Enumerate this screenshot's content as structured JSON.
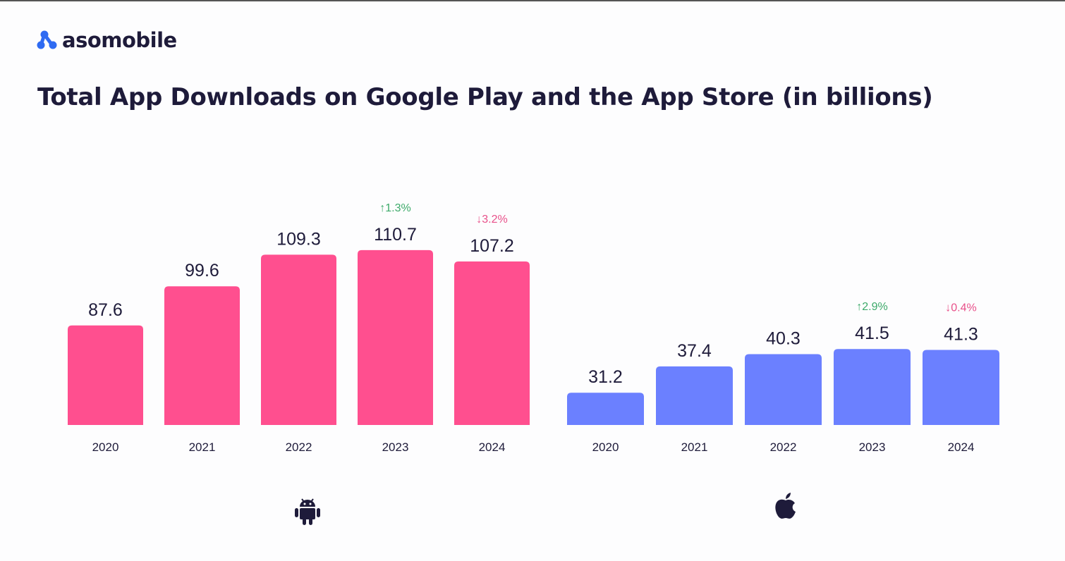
{
  "brand": {
    "name": "asomobile",
    "color": "#2F6BF2"
  },
  "title": "Total App Downloads on Google Play and the App Store (in billions)",
  "chart_data": [
    {
      "type": "bar",
      "platform_icon": "android-icon",
      "color": "#FF4F8F",
      "categories": [
        "2020",
        "2021",
        "2022",
        "2023",
        "2024"
      ],
      "values": [
        87.6,
        99.6,
        109.3,
        110.7,
        107.2
      ],
      "value_labels": [
        "87.6",
        "99.6",
        "109.3",
        "110.7",
        "107.2"
      ],
      "annotations": [
        {
          "category": "2023",
          "text": "1.3%",
          "direction": "up",
          "color": "#3DAA6A"
        },
        {
          "category": "2024",
          "text": "3.2%",
          "direction": "down",
          "color": "#E8508A"
        }
      ]
    },
    {
      "type": "bar",
      "platform_icon": "apple-icon",
      "color": "#6B80FF",
      "categories": [
        "2020",
        "2021",
        "2022",
        "2023",
        "2024"
      ],
      "values": [
        31.2,
        37.4,
        40.3,
        41.5,
        41.3
      ],
      "value_labels": [
        "31.2",
        "37.4",
        "40.3",
        "41.5",
        "41.3"
      ],
      "annotations": [
        {
          "category": "2023",
          "text": "2.9%",
          "direction": "up",
          "color": "#3DAA6A"
        },
        {
          "category": "2024",
          "text": "0.4%",
          "direction": "down",
          "color": "#E8508A"
        }
      ]
    }
  ]
}
